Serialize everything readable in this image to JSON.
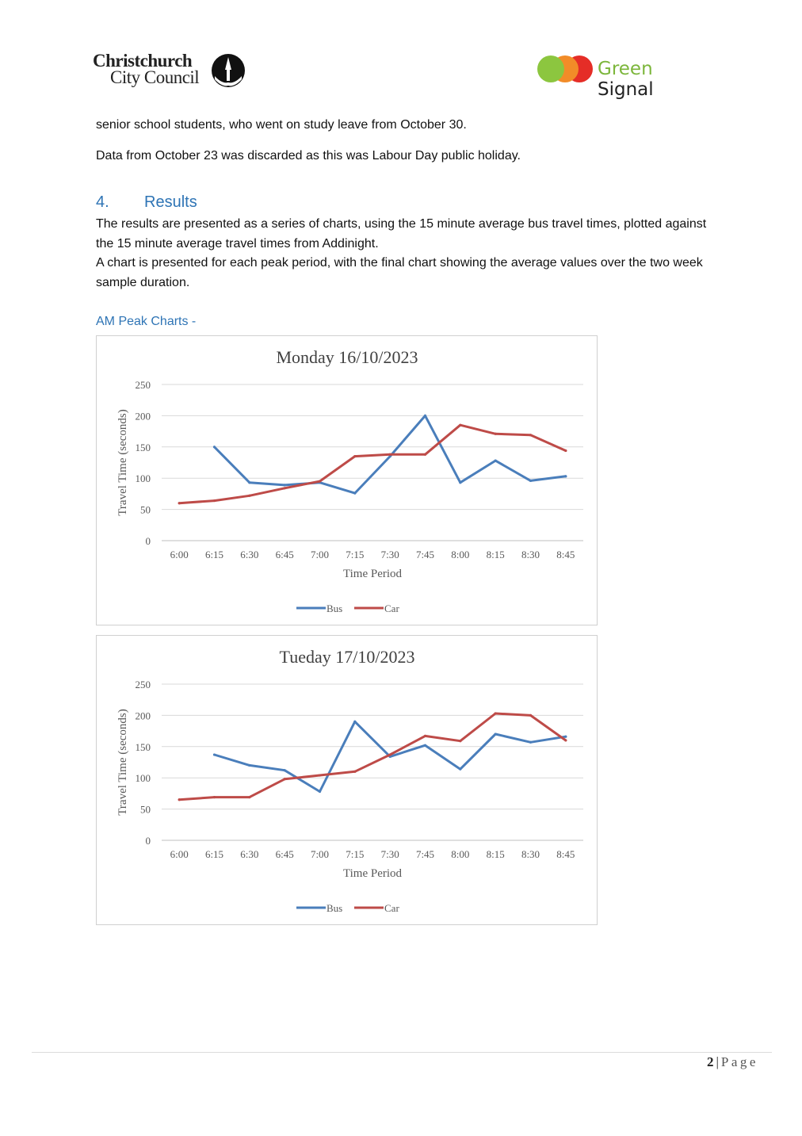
{
  "header": {
    "council_logo": {
      "line1": "Christchurch",
      "line2": "City Council"
    },
    "green_signal_logo": {
      "word1": "Green",
      "word2": "Signal"
    }
  },
  "body": {
    "para_study_leave": "senior school students, who went on study leave from October 30.",
    "para_discard": "Data from October 23 was discarded as this was Labour Day public holiday.",
    "results_heading_number": "4.",
    "results_heading_text": "Results",
    "results_para_1": "The results are presented as a series of charts, using the 15 minute average bus travel times, plotted against the 15 minute average travel times from Addinight.",
    "results_para_2": "A chart is presented for each peak period, with the final chart showing the average values over the two week sample duration.",
    "am_peak_heading": "AM Peak Charts -"
  },
  "chart_data": [
    {
      "type": "line",
      "title": "Monday 16/10/2023",
      "xlabel": "Time Period",
      "ylabel": "Travel Time (seconds)",
      "ylim": [
        0,
        250
      ],
      "yticks": [
        0,
        50,
        100,
        150,
        200,
        250
      ],
      "categories": [
        "6:00",
        "6:15",
        "6:30",
        "6:45",
        "7:00",
        "7:15",
        "7:30",
        "7:45",
        "8:00",
        "8:15",
        "8:30",
        "8:45"
      ],
      "grid": true,
      "legend": "bottom",
      "series": [
        {
          "name": "Bus",
          "color": "#4a7ebb",
          "values": [
            null,
            150,
            93,
            89,
            93,
            76,
            135,
            200,
            93,
            128,
            96,
            103
          ]
        },
        {
          "name": "Car",
          "color": "#be4b48",
          "values": [
            60,
            64,
            72,
            84,
            95,
            135,
            138,
            138,
            185,
            171,
            169,
            144
          ]
        }
      ]
    },
    {
      "type": "line",
      "title": "Tueday 17/10/2023",
      "xlabel": "Time Period",
      "ylabel": "Travel Time (seconds)",
      "ylim": [
        0,
        250
      ],
      "yticks": [
        0,
        50,
        100,
        150,
        200,
        250
      ],
      "categories": [
        "6:00",
        "6:15",
        "6:30",
        "6:45",
        "7:00",
        "7:15",
        "7:30",
        "7:45",
        "8:00",
        "8:15",
        "8:30",
        "8:45"
      ],
      "grid": true,
      "legend": "bottom",
      "series": [
        {
          "name": "Bus",
          "color": "#4a7ebb",
          "values": [
            null,
            137,
            120,
            112,
            78,
            190,
            134,
            152,
            114,
            170,
            157,
            166
          ]
        },
        {
          "name": "Car",
          "color": "#be4b48",
          "values": [
            65,
            69,
            69,
            98,
            104,
            110,
            137,
            167,
            159,
            203,
            200,
            160
          ]
        }
      ]
    }
  ],
  "footer": {
    "page_number": "2",
    "separator": "|",
    "page_word": "Page"
  }
}
